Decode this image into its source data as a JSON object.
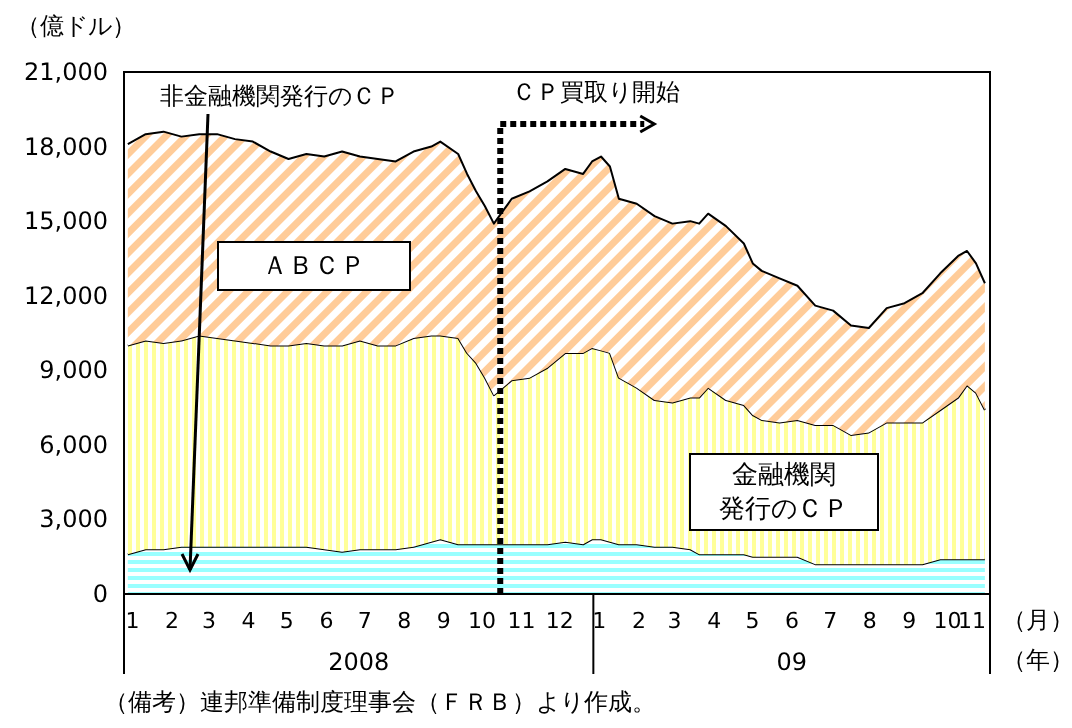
{
  "chart_data": {
    "type": "area",
    "stacked": true,
    "ylabel": "（億ドル）",
    "xlabel": "（月）（年）",
    "x": [
      "2008-01-02",
      "2008-01-16",
      "2008-01-30",
      "2008-02-13",
      "2008-02-27",
      "2008-03-12",
      "2008-03-26",
      "2008-04-09",
      "2008-04-23",
      "2008-05-07",
      "2008-05-21",
      "2008-06-04",
      "2008-06-18",
      "2008-07-02",
      "2008-07-16",
      "2008-07-30",
      "2008-08-13",
      "2008-08-27",
      "2008-09-03",
      "2008-09-17",
      "2008-09-24",
      "2008-10-01",
      "2008-10-08",
      "2008-10-15",
      "2008-10-22",
      "2008-10-29",
      "2008-11-12",
      "2008-11-26",
      "2008-12-10",
      "2008-12-24",
      "2008-12-31",
      "2009-01-07",
      "2009-01-14",
      "2009-01-21",
      "2009-02-04",
      "2009-02-18",
      "2009-03-04",
      "2009-03-18",
      "2009-03-25",
      "2009-04-01",
      "2009-04-15",
      "2009-04-29",
      "2009-05-06",
      "2009-05-13",
      "2009-05-27",
      "2009-06-10",
      "2009-06-24",
      "2009-07-08",
      "2009-07-22",
      "2009-08-05",
      "2009-08-19",
      "2009-09-02",
      "2009-09-16",
      "2009-09-30",
      "2009-10-14",
      "2009-10-21",
      "2009-10-28",
      "2009-11-04"
    ],
    "series": [
      {
        "name": "非金融機関発行のＣＰ",
        "color": "#99ffff",
        "values": [
          1600,
          1800,
          1800,
          1900,
          1900,
          1900,
          1900,
          1900,
          1900,
          1900,
          1900,
          1800,
          1700,
          1800,
          1800,
          1800,
          1900,
          2100,
          2200,
          2000,
          2000,
          2000,
          2000,
          2000,
          2000,
          2000,
          2000,
          2000,
          2100,
          2000,
          2200,
          2200,
          2100,
          2000,
          2000,
          1900,
          1900,
          1800,
          1600,
          1600,
          1600,
          1600,
          1500,
          1500,
          1500,
          1500,
          1200,
          1200,
          1200,
          1200,
          1200,
          1200,
          1200,
          1400,
          1400,
          1400,
          1400,
          1400
        ]
      },
      {
        "name": "金融機関発行のＣＰ",
        "color": "#ffff99",
        "values": [
          8400,
          8400,
          8300,
          8300,
          8500,
          8400,
          8300,
          8200,
          8100,
          8100,
          8200,
          8200,
          8300,
          8400,
          8200,
          8200,
          8400,
          8300,
          8200,
          8300,
          7700,
          7300,
          6700,
          6000,
          6300,
          6600,
          6700,
          7100,
          7600,
          7700,
          7700,
          7600,
          7600,
          6700,
          6300,
          5900,
          5800,
          6100,
          6300,
          6700,
          6200,
          6000,
          5700,
          5500,
          5400,
          5500,
          5600,
          5600,
          5200,
          5300,
          5700,
          5700,
          5700,
          6000,
          6500,
          7000,
          6700,
          6000
        ]
      },
      {
        "name": "ＡＢＣＰ",
        "color": "#ffcc99",
        "values": [
          8100,
          8300,
          8500,
          8200,
          8100,
          8200,
          8100,
          8100,
          7800,
          7500,
          7600,
          7600,
          7800,
          7400,
          7500,
          7400,
          7500,
          7600,
          7800,
          7400,
          7200,
          6900,
          6900,
          6900,
          7100,
          7300,
          7500,
          7500,
          7400,
          7200,
          7500,
          7800,
          7500,
          7200,
          7400,
          7400,
          7200,
          7100,
          7000,
          7000,
          7000,
          6500,
          6100,
          6000,
          5800,
          5400,
          4800,
          4600,
          4400,
          4200,
          4600,
          4800,
          5200,
          5500,
          5700,
          5400,
          5200,
          5100
        ]
      }
    ],
    "xlim": [
      "2007-12-30",
      "2009-11-08"
    ],
    "xticks": [
      {
        "value": "2008-01-01",
        "label": "1"
      },
      {
        "value": "2008-02-01",
        "label": "2"
      },
      {
        "value": "2008-03-01",
        "label": "3"
      },
      {
        "value": "2008-04-01",
        "label": "4"
      },
      {
        "value": "2008-05-01",
        "label": "5"
      },
      {
        "value": "2008-06-01",
        "label": "6"
      },
      {
        "value": "2008-07-01",
        "label": "7"
      },
      {
        "value": "2008-08-01",
        "label": "8"
      },
      {
        "value": "2008-09-01",
        "label": "9"
      },
      {
        "value": "2008-10-01",
        "label": "10"
      },
      {
        "value": "2008-11-01",
        "label": "11"
      },
      {
        "value": "2008-12-01",
        "label": "12"
      },
      {
        "value": "2009-01-01",
        "label": "1"
      },
      {
        "value": "2009-02-01",
        "label": "2"
      },
      {
        "value": "2009-03-01",
        "label": "3"
      },
      {
        "value": "2009-04-01",
        "label": "4"
      },
      {
        "value": "2009-05-01",
        "label": "5"
      },
      {
        "value": "2009-06-01",
        "label": "6"
      },
      {
        "value": "2009-07-01",
        "label": "7"
      },
      {
        "value": "2009-08-01",
        "label": "8"
      },
      {
        "value": "2009-09-01",
        "label": "9"
      },
      {
        "value": "2009-10-01",
        "label": "10"
      },
      {
        "value": "2009-11-01",
        "label": "11"
      }
    ],
    "ylim": [
      0,
      21000
    ],
    "yticks": [
      0,
      {
        "value": 3000,
        "label": "3,000"
      },
      {
        "value": 6000,
        "label": "6,000"
      },
      {
        "value": 9000,
        "label": "9,000"
      },
      {
        "value": 12000,
        "label": "12,000"
      },
      {
        "value": 15000,
        "label": "15,000"
      },
      {
        "value": 18000,
        "label": "18,000"
      },
      {
        "value": 21000,
        "label": "21,000"
      }
    ],
    "ref_lines": [
      {
        "axis": "x",
        "value": "2008-10-20",
        "label": "ＣＰ買取り開始",
        "line_style": "dashed"
      }
    ],
    "annotations": [
      "2008",
      "09",
      "（備考）連邦準備制度理事会（ＦＲＢ）より作成。"
    ],
    "grid": false
  }
}
